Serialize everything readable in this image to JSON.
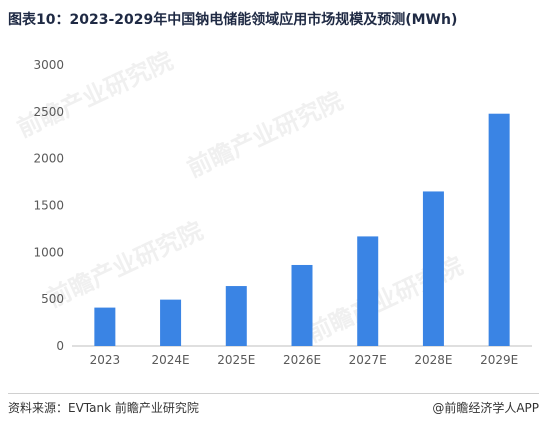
{
  "title": "图表10：2023-2029年中国钠电储能领域应用市场规模及预测(MWh)",
  "source": "资料来源：EVTank 前瞻产业研究院",
  "brand": "@前瞻经济学人APP",
  "watermark": "前瞻产业研究院",
  "colors": {
    "bar": "#3a84e4",
    "axis": "#bfbfbf",
    "text": "#595959"
  },
  "chart_data": {
    "type": "bar",
    "categories": [
      "2023",
      "2024E",
      "2025E",
      "2026E",
      "2027E",
      "2028E",
      "2029E"
    ],
    "values": [
      410,
      495,
      640,
      865,
      1170,
      1650,
      2480
    ],
    "ylim": [
      0,
      3000
    ],
    "yticks": [
      0,
      500,
      1000,
      1500,
      2000,
      2500,
      3000
    ],
    "grid": false,
    "legend": "none"
  }
}
